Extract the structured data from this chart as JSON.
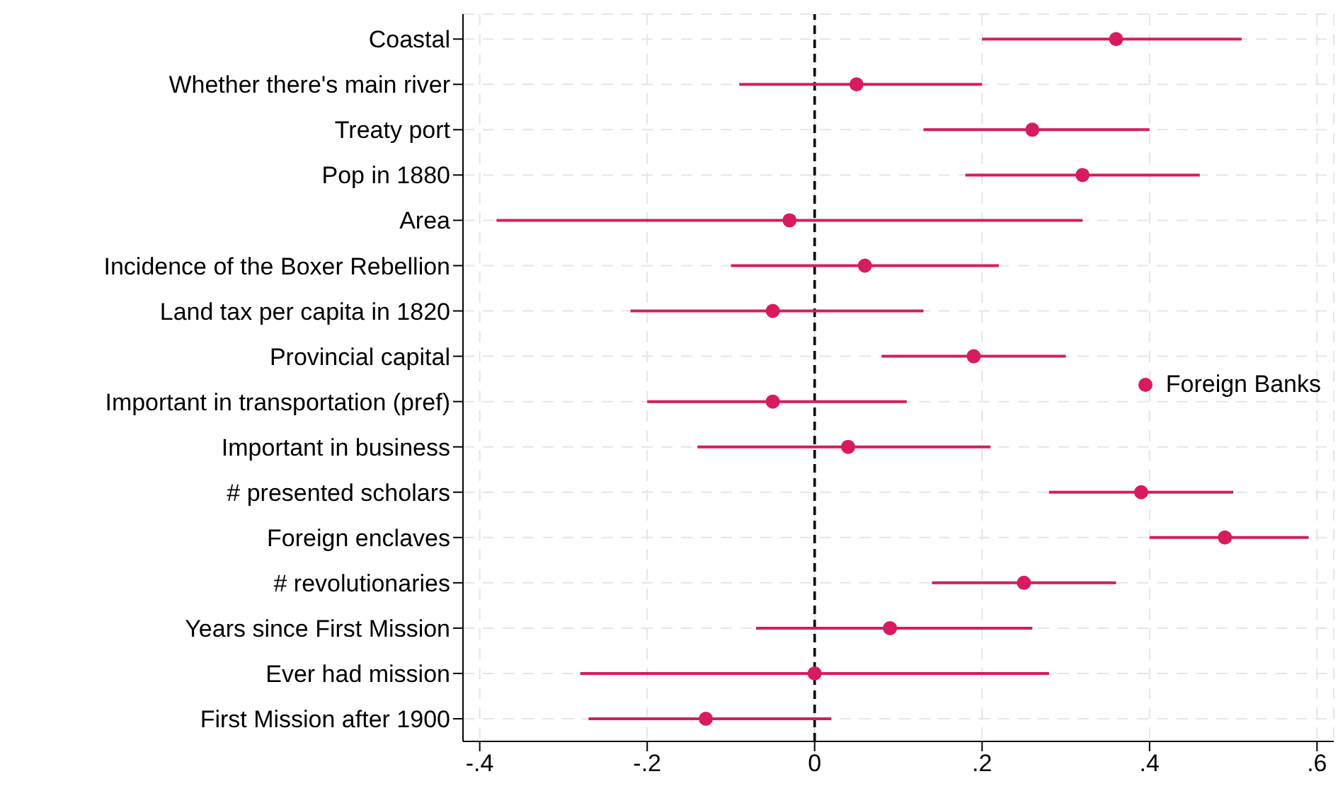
{
  "chart_data": {
    "type": "scatter",
    "orientation": "horizontal",
    "categories": [
      "Coastal",
      "Whether there's main river",
      "Treaty port",
      "Pop in 1880 ",
      "Area",
      "Incidence of the Boxer Rebellion",
      "Land tax per capita in 1820",
      "Provincial capital",
      "Important in transportation (pref)",
      "Important in business",
      "# presented scholars",
      "Foreign enclaves ",
      "# revolutionaries",
      "Years since First Mission",
      "Ever had mission",
      "First Mission after 1900"
    ],
    "series": [
      {
        "name": "Foreign Banks",
        "color": "#d81b60",
        "values": [
          0.36,
          0.05,
          0.26,
          0.32,
          -0.03,
          0.06,
          -0.05,
          0.19,
          -0.05,
          0.04,
          0.39,
          0.49,
          0.25,
          0.09,
          0,
          -0.13
        ],
        "errors": [
          [
            0.2,
            0.51
          ],
          [
            -0.09,
            0.2
          ],
          [
            0.13,
            0.4
          ],
          [
            0.18,
            0.46
          ],
          [
            -0.38,
            0.32
          ],
          [
            -0.1,
            0.22
          ],
          [
            -0.22,
            0.13
          ],
          [
            0.08,
            0.3
          ],
          [
            -0.2,
            0.11
          ],
          [
            -0.14,
            0.21
          ],
          [
            0.28,
            0.5
          ],
          [
            0.4,
            0.59
          ],
          [
            0.14,
            0.36
          ],
          [
            -0.07,
            0.26
          ],
          [
            -0.28,
            0.28
          ],
          [
            -0.27,
            0.02
          ]
        ]
      }
    ],
    "xlim": [
      -0.42,
      0.62
    ],
    "xticks": [
      {
        "value": -0.4,
        "label": "-.4"
      },
      {
        "value": -0.2,
        "label": "-.2"
      },
      0,
      {
        "value": 0.2,
        "label": ".2"
      },
      {
        "value": 0.4,
        "label": ".4"
      },
      {
        "value": 0.6,
        "label": ".6"
      }
    ],
    "ref_lines": [
      {
        "axis": "x",
        "value": 0,
        "color": "#000000",
        "line_style": "dashed"
      }
    ],
    "grid": true,
    "legend": "right",
    "marker": "circle"
  }
}
